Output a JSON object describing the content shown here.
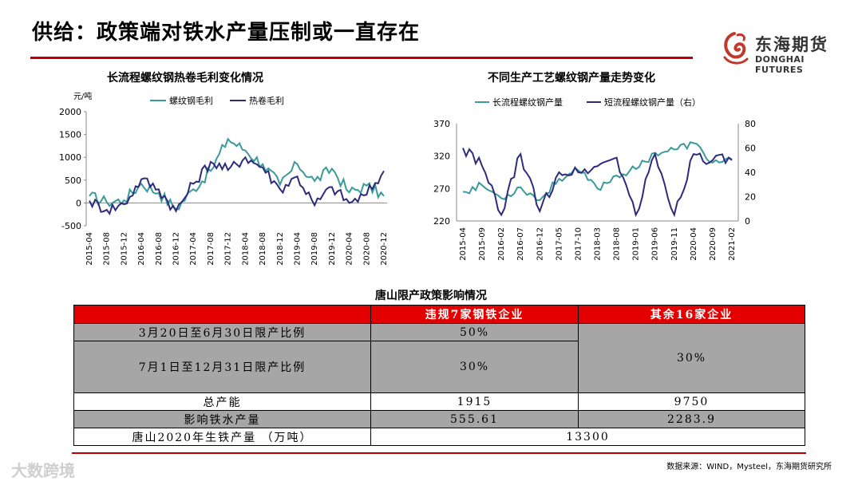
{
  "page": {
    "title": "供给：政策端对铁水产量压制或一直存在",
    "source": "数据来源：WIND，Mysteel，东海期货研究所",
    "watermark": "大数跨境"
  },
  "logo": {
    "cn": "东海期货",
    "en": "DONGHAI FUTURES",
    "accent": "#c0392b"
  },
  "colors": {
    "teal": "#3a9a9a",
    "navy": "#2e2b7e",
    "red": "#c00000"
  },
  "chart_data": [
    {
      "type": "line",
      "title": "长流程螺纹钢热卷毛利变化情况",
      "ylabel": "元/吨",
      "ylim": [
        -500,
        2000
      ],
      "yticks": [
        2000,
        1500,
        1000,
        500,
        0,
        -500
      ],
      "categories": [
        "2015-04",
        "2015-08",
        "2015-12",
        "2016-04",
        "2016-08",
        "2016-12",
        "2017-04",
        "2017-08",
        "2017-12",
        "2018-04",
        "2018-08",
        "2018-12",
        "2019-04",
        "2019-08",
        "2019-12",
        "2020-04",
        "2020-08",
        "2020-12"
      ],
      "series": [
        {
          "name": "螺纹钢毛利",
          "color": "#3a9a9a",
          "values": [
            150,
            20,
            60,
            420,
            220,
            -130,
            300,
            700,
            1400,
            1150,
            850,
            400,
            850,
            480,
            750,
            230,
            380,
            150
          ]
        },
        {
          "name": "热卷毛利",
          "color": "#2e2b7e",
          "values": [
            50,
            -150,
            -30,
            520,
            300,
            -180,
            420,
            900,
            720,
            1000,
            780,
            300,
            580,
            -50,
            350,
            0,
            180,
            700
          ]
        }
      ]
    },
    {
      "type": "line",
      "title": "不同生产工艺螺纹钢产量走势变化",
      "ylim_left": [
        220,
        370
      ],
      "yticks_left": [
        370,
        320,
        270,
        220
      ],
      "ylim_right": [
        0,
        80
      ],
      "yticks_right": [
        80,
        60,
        40,
        20,
        0
      ],
      "categories": [
        "2015-04",
        "2015-09",
        "2016-02",
        "2016-07",
        "2016-12",
        "2017-05",
        "2017-10",
        "2018-03",
        "2018-08",
        "2019-01",
        "2019-06",
        "2019-11",
        "2020-04",
        "2020-09",
        "2021-02"
      ],
      "series": [
        {
          "name": "长流程螺纹钢产量",
          "axis": "left",
          "color": "#3a9a9a",
          "values": [
            265,
            275,
            255,
            272,
            252,
            285,
            298,
            270,
            290,
            300,
            325,
            330,
            340,
            310,
            315
          ]
        },
        {
          "name": "短流程螺纹钢产量（右）",
          "axis": "right",
          "color": "#2e2b7e",
          "values": [
            60,
            45,
            5,
            55,
            8,
            40,
            40,
            45,
            52,
            5,
            55,
            5,
            55,
            50,
            50
          ]
        }
      ]
    }
  ],
  "table": {
    "title": "唐山限产政策影响情况",
    "col1": "违规7家钢铁企业",
    "col2": "其余16家企业",
    "r1_label": "3月20日至6月30日限产比例",
    "r1_v1": "50%",
    "r2_label": "7月1日至12月31日限产比例",
    "r2_v1": "30%",
    "r12_v2": "30%",
    "r3_label": "总产能",
    "r3_v1": "1915",
    "r3_v2": "9750",
    "r4_label": "影响铁水产量",
    "r4_v1": "555.61",
    "r4_v2": "2283.9",
    "r5_label": "唐山2020年生铁产量 （万吨）",
    "r5_v": "13300"
  }
}
